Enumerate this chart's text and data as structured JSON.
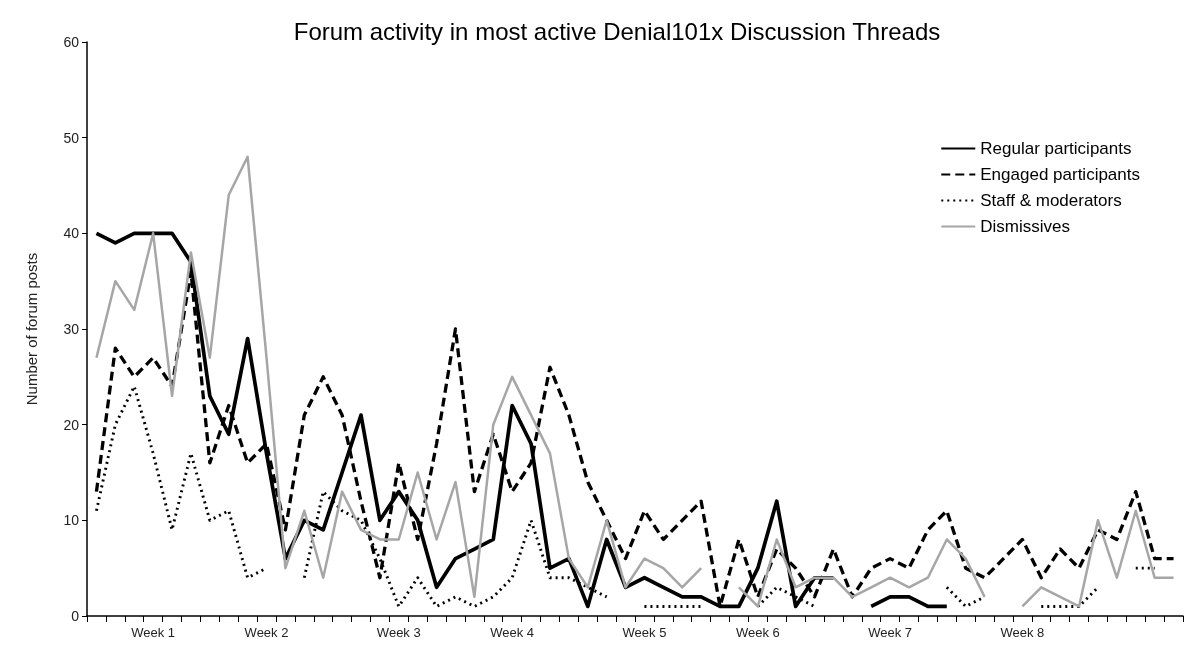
{
  "chart_data": {
    "type": "line",
    "title": "Forum activity in most active Denial101x Discussion Threads",
    "ylabel": "Number of forum posts",
    "categories": [
      null,
      null,
      null,
      "Week 1",
      null,
      null,
      null,
      null,
      null,
      "Week 2",
      null,
      null,
      null,
      null,
      null,
      null,
      "Week 3",
      null,
      null,
      null,
      null,
      null,
      "Week 4",
      null,
      null,
      null,
      null,
      null,
      null,
      "Week 5",
      null,
      null,
      null,
      null,
      null,
      "Week 6",
      null,
      null,
      null,
      null,
      null,
      null,
      "Week 7",
      null,
      null,
      null,
      null,
      null,
      null,
      "Week 8",
      null,
      null,
      null,
      null,
      null,
      null,
      null,
      null
    ],
    "series": [
      {
        "name": "Regular participants",
        "color": "#000000",
        "line_style": "solid",
        "values": [
          40,
          39,
          40,
          40,
          40,
          37,
          23,
          19,
          29,
          17,
          6,
          10,
          9,
          15,
          21,
          10,
          13,
          10,
          3,
          6,
          7,
          8,
          22,
          18,
          5,
          6,
          1,
          8,
          3,
          4,
          3,
          2,
          2,
          1,
          1,
          5,
          12,
          1,
          4,
          4,
          null,
          1,
          2,
          2,
          1,
          1,
          null,
          null,
          null,
          null,
          null,
          null,
          null,
          null,
          null,
          null,
          null,
          null
        ]
      },
      {
        "name": "Engaged participants",
        "color": "#000000",
        "line_style": "dashed",
        "values": [
          13,
          28,
          25,
          27,
          24,
          36,
          16,
          22,
          16,
          18,
          9,
          21,
          25,
          21,
          12,
          4,
          16,
          8,
          18,
          30,
          13,
          19,
          13,
          16,
          26,
          21,
          14,
          10,
          6,
          11,
          8,
          10,
          12,
          1,
          8,
          2,
          7,
          5,
          2,
          7,
          2,
          5,
          6,
          5,
          9,
          11,
          5,
          4,
          6,
          8,
          4,
          7,
          5,
          9,
          8,
          13,
          6,
          6
        ]
      },
      {
        "name": "Staff & moderators",
        "color": "#000000",
        "line_style": "dotted",
        "values": [
          11,
          20,
          24,
          17,
          9,
          17,
          10,
          11,
          4,
          5,
          null,
          4,
          13,
          11,
          10,
          6,
          1,
          4,
          1,
          2,
          1,
          2,
          4,
          10,
          4,
          4,
          3,
          2,
          null,
          1,
          1,
          1,
          1,
          null,
          null,
          1,
          3,
          2,
          1,
          null,
          null,
          null,
          null,
          null,
          null,
          3,
          1,
          2,
          null,
          null,
          1,
          1,
          1,
          3,
          null,
          5,
          5,
          null
        ]
      },
      {
        "name": "Dismissives",
        "color": "#a6a6a6",
        "line_style": "solid",
        "values": [
          27,
          35,
          32,
          40,
          23,
          38,
          27,
          44,
          48,
          27,
          5,
          11,
          4,
          13,
          9,
          8,
          8,
          15,
          8,
          14,
          2,
          20,
          25,
          21,
          17,
          6,
          3,
          10,
          3,
          6,
          5,
          3,
          5,
          null,
          3,
          1,
          8,
          3,
          4,
          4,
          2,
          3,
          4,
          3,
          4,
          8,
          6,
          2,
          null,
          1,
          3,
          2,
          1,
          10,
          4,
          11,
          4,
          4
        ]
      }
    ],
    "ylim": [
      0,
      60
    ],
    "yticks": [
      0,
      10,
      20,
      30,
      40,
      50,
      60
    ],
    "legend": "top right",
    "marker": "none"
  }
}
